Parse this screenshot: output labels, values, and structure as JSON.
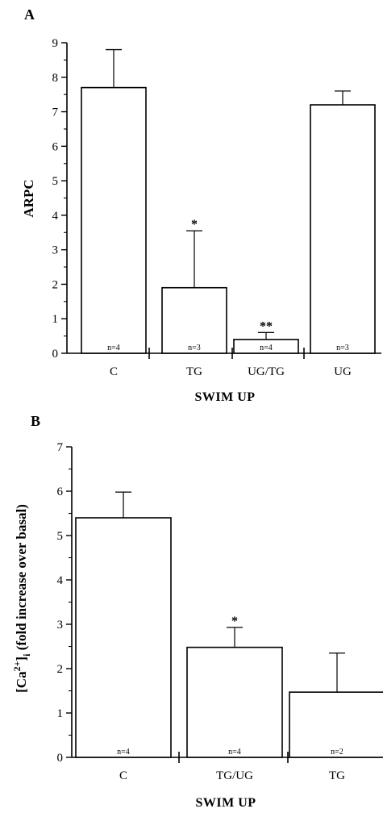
{
  "chart_data": [
    {
      "type": "bar",
      "panel": "A",
      "ylabel": "ARPC",
      "xlabel": "SWIM UP",
      "ylim": [
        0,
        9
      ],
      "yticks": [
        "0",
        "1",
        "2",
        "3",
        "4",
        "5",
        "6",
        "7",
        "8",
        "9"
      ],
      "categories": [
        "C",
        "TG",
        "UG/TG",
        "UG"
      ],
      "values": [
        7.7,
        1.9,
        0.4,
        7.2
      ],
      "errors": [
        1.1,
        1.65,
        0.2,
        0.4
      ],
      "n_labels": [
        "n=4",
        "n=3",
        "n=4",
        "n=3"
      ],
      "significance": [
        "",
        "*",
        "**",
        ""
      ]
    },
    {
      "type": "bar",
      "panel": "B",
      "ylabel_main": "[Ca",
      "ylabel_sup": "2+",
      "ylabel_bracket": "]",
      "ylabel_sub": "i",
      "ylabel_rest": " (fold increase over basal)",
      "xlabel": "SWIM UP",
      "ylim": [
        0,
        7
      ],
      "yticks": [
        "0",
        "1",
        "2",
        "3",
        "4",
        "5",
        "6",
        "7"
      ],
      "categories": [
        "C",
        "TG/UG",
        "TG"
      ],
      "values": [
        5.4,
        2.48,
        1.47
      ],
      "errors": [
        0.58,
        0.45,
        0.88
      ],
      "n_labels": [
        "n=4",
        "n=4",
        "n=2"
      ],
      "significance": [
        "",
        "*",
        ""
      ]
    }
  ]
}
